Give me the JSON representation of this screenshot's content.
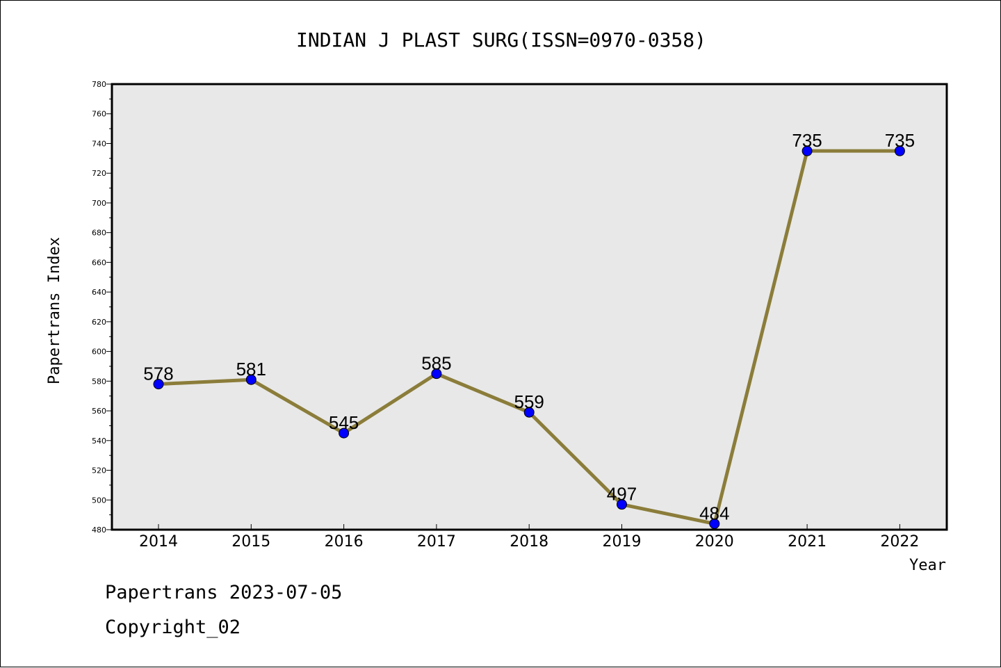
{
  "chart_data": {
    "type": "line",
    "title": "INDIAN J PLAST SURG(ISSN=0970-0358)",
    "xlabel": "Year",
    "ylabel": "Papertrans Index",
    "categories": [
      "2014",
      "2015",
      "2016",
      "2017",
      "2018",
      "2019",
      "2020",
      "2021",
      "2022"
    ],
    "series": [
      {
        "values": [
          578,
          581,
          545,
          585,
          559,
          497,
          484,
          735,
          735
        ]
      }
    ],
    "ylim": [
      480,
      780
    ],
    "yticks": [
      480,
      500,
      520,
      540,
      560,
      580,
      600,
      620,
      640,
      660,
      680,
      700,
      720,
      740,
      760,
      780
    ],
    "grid": false,
    "legend": "none",
    "colors": {
      "line": "#8b7d3a",
      "marker": "#0000ff",
      "plot_bg": "#e8e8e8"
    }
  },
  "footer": {
    "line1": "Papertrans 2023-07-05",
    "line2": "Copyright_02"
  }
}
